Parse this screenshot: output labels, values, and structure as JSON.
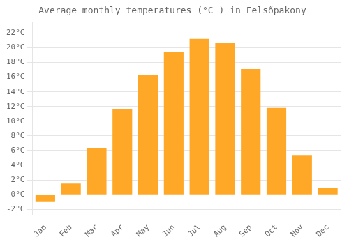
{
  "chart_data": {
    "type": "bar",
    "title": "Average monthly temperatures (°C ) in Felsőpakony",
    "categories": [
      "Jan",
      "Feb",
      "Mar",
      "Apr",
      "May",
      "Jun",
      "Jul",
      "Aug",
      "Sep",
      "Oct",
      "Nov",
      "Dec"
    ],
    "values": [
      -1.0,
      1.5,
      6.3,
      11.7,
      16.3,
      19.4,
      21.2,
      20.7,
      17.1,
      11.8,
      5.3,
      0.9
    ],
    "color": "#FFA726",
    "ylim": [
      -2.8,
      23.5
    ],
    "yticks": [
      {
        "value": -2,
        "label": "-2°C"
      },
      {
        "value": 0,
        "label": "0°C"
      },
      {
        "value": 2,
        "label": "2°C"
      },
      {
        "value": 4,
        "label": "4°C"
      },
      {
        "value": 6,
        "label": "6°C"
      },
      {
        "value": 8,
        "label": "8°C"
      },
      {
        "value": 10,
        "label": "10°C"
      },
      {
        "value": 12,
        "label": "12°C"
      },
      {
        "value": 14,
        "label": "14°C"
      },
      {
        "value": 16,
        "label": "16°C"
      },
      {
        "value": 18,
        "label": "18°C"
      },
      {
        "value": 20,
        "label": "20°C"
      },
      {
        "value": 22,
        "label": "22°C"
      }
    ],
    "grid": true
  }
}
